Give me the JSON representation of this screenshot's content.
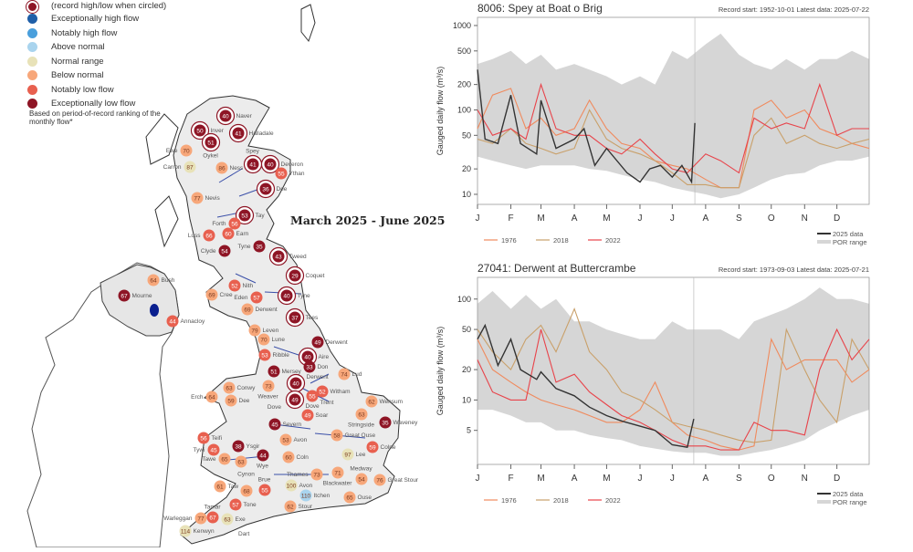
{
  "map": {
    "title": "March 2025 - June 2025",
    "legend": {
      "circled_note": "(record high/low when circled)",
      "items": [
        {
          "label": "Exceptionally high flow",
          "color": "#1f5fa8"
        },
        {
          "label": "Notably high flow",
          "color": "#4a9fdc"
        },
        {
          "label": "Above normal",
          "color": "#a9d4ee"
        },
        {
          "label": "Normal range",
          "color": "#e8e2b8"
        },
        {
          "label": "Below normal",
          "color": "#f7a77a"
        },
        {
          "label": "Notably low flow",
          "color": "#e8604f"
        },
        {
          "label": "Exceptionally low flow",
          "color": "#8e1525"
        }
      ],
      "footnote": "Based on period-of-record ranking of the monthly flow*"
    },
    "stations": [
      {
        "name": "Naver",
        "value": "40",
        "cat": 6,
        "record": true
      },
      {
        "name": "Halladale",
        "value": "41",
        "cat": 6,
        "record": true
      },
      {
        "name": "Inver",
        "value": "50",
        "cat": 6,
        "record": true
      },
      {
        "name": "Oykel",
        "value": "51",
        "cat": 6,
        "record": true
      },
      {
        "name": "Ewe",
        "value": "70",
        "cat": 4,
        "record": false
      },
      {
        "name": "Carron",
        "value": "87",
        "cat": 3,
        "record": false
      },
      {
        "name": "Ness",
        "value": "86",
        "cat": 4,
        "record": false
      },
      {
        "name": "Spey",
        "value": "41",
        "cat": 6,
        "record": true
      },
      {
        "name": "Deveron",
        "value": "40",
        "cat": 6,
        "record": true
      },
      {
        "name": "Ythan",
        "value": "55",
        "cat": 5,
        "record": false
      },
      {
        "name": "Dee",
        "value": "36",
        "cat": 6,
        "record": true
      },
      {
        "name": "Nevis",
        "value": "77",
        "cat": 4,
        "record": false
      },
      {
        "name": "Tay",
        "value": "53",
        "cat": 6,
        "record": true
      },
      {
        "name": "Forth",
        "value": "56",
        "cat": 5,
        "record": false
      },
      {
        "name": "Earn",
        "value": "60",
        "cat": 5,
        "record": false
      },
      {
        "name": "Luss",
        "value": "66",
        "cat": 5,
        "record": false
      },
      {
        "name": "Tyne",
        "value": "35",
        "cat": 6,
        "record": false
      },
      {
        "name": "Tweed",
        "value": "43",
        "cat": 6,
        "record": true
      },
      {
        "name": "Clyde",
        "value": "54",
        "cat": 6,
        "record": false
      },
      {
        "name": "Coquet",
        "value": "29",
        "cat": 6,
        "record": true
      },
      {
        "name": "Cree",
        "value": "69",
        "cat": 4,
        "record": false
      },
      {
        "name": "Nith",
        "value": "52",
        "cat": 5,
        "record": false
      },
      {
        "name": "Eden",
        "value": "57",
        "cat": 5,
        "record": false
      },
      {
        "name": "Tyne",
        "value": "40",
        "cat": 6,
        "record": true
      },
      {
        "name": "Derwent",
        "value": "69",
        "cat": 4,
        "record": false
      },
      {
        "name": "Tees",
        "value": "37",
        "cat": 6,
        "record": true
      },
      {
        "name": "Leven",
        "value": "79",
        "cat": 4,
        "record": false
      },
      {
        "name": "Lune",
        "value": "70",
        "cat": 4,
        "record": false
      },
      {
        "name": "Derwent",
        "value": "49",
        "cat": 6,
        "record": false
      },
      {
        "name": "Ribble",
        "value": "53",
        "cat": 5,
        "record": false
      },
      {
        "name": "Aire",
        "value": "40",
        "cat": 6,
        "record": true
      },
      {
        "name": "Don",
        "value": "33",
        "cat": 6,
        "record": false
      },
      {
        "name": "Mersey",
        "value": "51",
        "cat": 6,
        "record": false
      },
      {
        "name": "Conwy",
        "value": "63",
        "cat": 4,
        "record": false
      },
      {
        "name": "Lud",
        "value": "74",
        "cat": 4,
        "record": false
      },
      {
        "name": "Erch",
        "value": "64",
        "cat": 4,
        "record": false
      },
      {
        "name": "Dee",
        "value": "59",
        "cat": 4,
        "record": false
      },
      {
        "name": "Weaver",
        "value": "73",
        "cat": 4,
        "record": false
      },
      {
        "name": "Derwent",
        "value": "40",
        "cat": 6,
        "record": true
      },
      {
        "name": "Dove",
        "value": "49",
        "cat": 6,
        "record": true
      },
      {
        "name": "Trent",
        "value": "55",
        "cat": 5,
        "record": false
      },
      {
        "name": "Witham",
        "value": "52",
        "cat": 5,
        "record": false
      },
      {
        "name": "Soar",
        "value": "49",
        "cat": 5,
        "record": false
      },
      {
        "name": "Wensum",
        "value": "62",
        "cat": 4,
        "record": false
      },
      {
        "name": "Stringside",
        "value": "63",
        "cat": 4,
        "record": false
      },
      {
        "name": "Waveney",
        "value": "35",
        "cat": 6,
        "record": false
      },
      {
        "name": "Severn",
        "value": "45",
        "cat": 6,
        "record": false
      },
      {
        "name": "Teifi",
        "value": "56",
        "cat": 5,
        "record": false
      },
      {
        "name": "Avon",
        "value": "53",
        "cat": 4,
        "record": false
      },
      {
        "name": "Great Ouse",
        "value": "58",
        "cat": 4,
        "record": false
      },
      {
        "name": "Ysgir",
        "value": "38",
        "cat": 6,
        "record": false
      },
      {
        "name": "Tywi",
        "value": "45",
        "cat": 5,
        "record": false
      },
      {
        "name": "Colne",
        "value": "59",
        "cat": 5,
        "record": false
      },
      {
        "name": "Tawe",
        "value": "65",
        "cat": 4,
        "record": false
      },
      {
        "name": "Wye",
        "value": "44",
        "cat": 6,
        "record": false
      },
      {
        "name": "",
        "value": "63",
        "cat": 4,
        "record": false
      },
      {
        "name": "Coln",
        "value": "60",
        "cat": 4,
        "record": false
      },
      {
        "name": "Lee",
        "value": "97",
        "cat": 3,
        "record": false
      },
      {
        "name": "Thames",
        "value": "73",
        "cat": 4,
        "record": false
      },
      {
        "name": "Blackwater",
        "value": "71",
        "cat": 4,
        "record": false
      },
      {
        "name": "Great Stour",
        "value": "76",
        "cat": 4,
        "record": false
      },
      {
        "name": "Medway",
        "value": "54",
        "cat": 4,
        "record": false
      },
      {
        "name": "Taw",
        "value": "61",
        "cat": 4,
        "record": false
      },
      {
        "name": "Cynon",
        "value": "68",
        "cat": 4,
        "record": false
      },
      {
        "name": "Brue",
        "value": "55",
        "cat": 5,
        "record": false
      },
      {
        "name": "Avon",
        "value": "100",
        "cat": 3,
        "record": false
      },
      {
        "name": "Itchen",
        "value": "110",
        "cat": 2,
        "record": false
      },
      {
        "name": "Ouse",
        "value": "65",
        "cat": 4,
        "record": false
      },
      {
        "name": "Tone",
        "value": "57",
        "cat": 5,
        "record": false
      },
      {
        "name": "Stour",
        "value": "62",
        "cat": 4,
        "record": false
      },
      {
        "name": "Tamar",
        "value": "67",
        "cat": 5,
        "record": false
      },
      {
        "name": "Warleggan",
        "value": "77",
        "cat": 4,
        "record": false
      },
      {
        "name": "Exe",
        "value": "63",
        "cat": 3,
        "record": false
      },
      {
        "name": "Kenwyn",
        "value": "114",
        "cat": 3,
        "record": false
      },
      {
        "name": "Mourne",
        "value": "67",
        "cat": 6,
        "record": false
      },
      {
        "name": "Bush",
        "value": "64",
        "cat": 4,
        "record": false
      },
      {
        "name": "Annacloy",
        "value": "44",
        "cat": 5,
        "record": false
      }
    ],
    "extra_labels": [
      "Dart",
      "Dove"
    ]
  },
  "chart_data": [
    {
      "type": "line",
      "title": "8006: Spey at Boat o Brig",
      "record_info": "Record start: 1952-10-01 Latest data: 2025-07-22",
      "ylabel": "Gauged daily flow (m³/s)",
      "yscale": "log",
      "ylim": [
        7.6,
        1250
      ],
      "yticks": [
        10,
        20,
        50,
        100,
        200,
        500,
        1000
      ],
      "xticks": [
        "J",
        "F",
        "M",
        "A",
        "M",
        "J",
        "J",
        "A",
        "S",
        "O",
        "N",
        "D"
      ],
      "latest_marker": "07-22",
      "x": [
        "01-01",
        "01-15",
        "02-01",
        "02-15",
        "03-01",
        "03-15",
        "04-01",
        "04-15",
        "05-01",
        "05-15",
        "06-01",
        "06-15",
        "07-01",
        "07-15",
        "08-01",
        "08-15",
        "09-01",
        "09-15",
        "10-01",
        "10-15",
        "11-01",
        "11-15",
        "12-01",
        "12-15",
        "12-31"
      ],
      "por_range": {
        "name": "POR range",
        "color": "#d6d6d6",
        "min": [
          28,
          25,
          22,
          20,
          22,
          22,
          22,
          20,
          19,
          17,
          15,
          14,
          12,
          11,
          10,
          9,
          10,
          12,
          15,
          17,
          18,
          22,
          25,
          25,
          28
        ],
        "max": [
          350,
          400,
          500,
          350,
          450,
          300,
          350,
          300,
          250,
          200,
          250,
          200,
          500,
          400,
          600,
          800,
          450,
          350,
          300,
          400,
          300,
          400,
          400,
          500,
          400
        ]
      },
      "series": [
        {
          "name": "1976",
          "color": "#f08a5d",
          "values": [
            60,
            150,
            180,
            60,
            80,
            50,
            60,
            130,
            60,
            40,
            35,
            25,
            22,
            20,
            15,
            12,
            12,
            100,
            130,
            80,
            100,
            60,
            50,
            40,
            35
          ]
        },
        {
          "name": "2018",
          "color": "#c9a06a",
          "values": [
            45,
            40,
            60,
            40,
            35,
            30,
            35,
            100,
            45,
            35,
            30,
            25,
            18,
            13,
            13,
            12,
            12,
            50,
            80,
            40,
            50,
            40,
            35,
            40,
            45
          ]
        },
        {
          "name": "2022",
          "color": "#e8434a",
          "values": [
            100,
            50,
            60,
            45,
            200,
            60,
            50,
            50,
            35,
            30,
            45,
            30,
            20,
            18,
            30,
            25,
            18,
            80,
            60,
            70,
            60,
            200,
            50,
            60,
            60
          ]
        },
        {
          "name": "2025 data",
          "color": "#333333",
          "x": [
            "01-01",
            "01-08",
            "01-20",
            "02-01",
            "02-10",
            "02-25",
            "03-01",
            "03-15",
            "04-01",
            "04-10",
            "04-20",
            "05-01",
            "05-20",
            "06-01",
            "06-10",
            "06-20",
            "07-01",
            "07-10",
            "07-19",
            "07-22"
          ],
          "values": [
            300,
            45,
            40,
            150,
            40,
            30,
            130,
            35,
            45,
            60,
            22,
            35,
            18,
            14,
            20,
            22,
            16,
            22,
            14,
            70
          ]
        }
      ],
      "legend": [
        "1976",
        "2018",
        "2022",
        "2025 data",
        "POR range"
      ]
    },
    {
      "type": "line",
      "title": "27041: Derwent at Buttercrambe",
      "record_info": "Record start: 1973-09-03 Latest data: 2025-07-21",
      "ylabel": "Gauged daily flow (m³/s)",
      "yscale": "log",
      "ylim": [
        2.3,
        164
      ],
      "yticks": [
        5,
        10,
        20,
        50,
        100
      ],
      "xticks": [
        "J",
        "F",
        "M",
        "A",
        "M",
        "J",
        "J",
        "A",
        "S",
        "O",
        "N",
        "D"
      ],
      "latest_marker": "07-21",
      "x": [
        "01-01",
        "01-15",
        "02-01",
        "02-15",
        "03-01",
        "03-15",
        "04-01",
        "04-15",
        "05-01",
        "05-15",
        "06-01",
        "06-15",
        "07-01",
        "07-15",
        "08-01",
        "08-15",
        "09-01",
        "09-15",
        "10-01",
        "10-15",
        "11-01",
        "11-15",
        "12-01",
        "12-15",
        "12-31"
      ],
      "por_range": {
        "name": "POR range",
        "color": "#d6d6d6",
        "min": [
          8,
          8,
          7,
          6,
          6,
          5,
          5,
          4.5,
          4.2,
          4,
          3.5,
          3.3,
          3.1,
          3,
          3,
          2.8,
          2.8,
          3,
          3.2,
          3.5,
          4,
          5,
          6,
          7,
          8
        ],
        "max": [
          90,
          120,
          80,
          110,
          80,
          100,
          60,
          60,
          50,
          45,
          40,
          40,
          60,
          50,
          50,
          50,
          40,
          60,
          70,
          80,
          100,
          130,
          100,
          100,
          90
        ]
      },
      "series": [
        {
          "name": "1976",
          "color": "#f08a5d",
          "values": [
            40,
            20,
            15,
            12,
            10,
            9,
            8,
            7,
            6,
            6,
            8,
            15,
            6,
            4.5,
            4,
            3.5,
            3.2,
            3.5,
            40,
            20,
            25,
            25,
            25,
            15,
            20
          ]
        },
        {
          "name": "2018",
          "color": "#c9a06a",
          "values": [
            50,
            30,
            20,
            40,
            55,
            30,
            80,
            30,
            20,
            12,
            10,
            8,
            6,
            5.5,
            5,
            4.5,
            4,
            3.8,
            4,
            50,
            20,
            10,
            6,
            40,
            20
          ]
        },
        {
          "name": "2022",
          "color": "#e8434a",
          "values": [
            25,
            12,
            10,
            10,
            50,
            15,
            18,
            12,
            9,
            7,
            6,
            5,
            4,
            3.5,
            3.5,
            3.2,
            3.2,
            6,
            5,
            5,
            4.5,
            20,
            50,
            25,
            40
          ]
        },
        {
          "name": "2025 data",
          "color": "#333333",
          "x": [
            "01-01",
            "01-08",
            "01-20",
            "02-01",
            "02-10",
            "02-25",
            "03-01",
            "03-15",
            "04-01",
            "04-15",
            "05-01",
            "05-15",
            "06-01",
            "06-15",
            "07-01",
            "07-15",
            "07-21"
          ],
          "values": [
            40,
            55,
            22,
            40,
            20,
            16,
            19,
            13,
            11,
            8.5,
            7,
            6.2,
            5.5,
            5,
            3.6,
            3.4,
            6.5
          ]
        }
      ],
      "legend": [
        "1976",
        "2018",
        "2022",
        "2025 data",
        "POR range"
      ]
    }
  ]
}
